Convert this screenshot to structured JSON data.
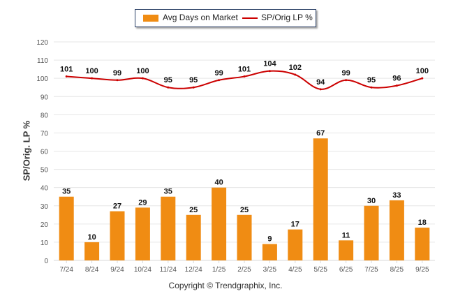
{
  "chart_data": {
    "type": "bar",
    "title": "",
    "xlabel": "",
    "ylabel": "SP/Orig. LP %",
    "ylim": [
      0,
      120
    ],
    "yticks": [
      0,
      10,
      20,
      30,
      40,
      50,
      60,
      70,
      80,
      90,
      100,
      110,
      120
    ],
    "grid": true,
    "legend_position": "top-center",
    "categories": [
      "7/24",
      "8/24",
      "9/24",
      "10/24",
      "11/24",
      "12/24",
      "1/25",
      "2/25",
      "3/25",
      "4/25",
      "5/25",
      "6/25",
      "7/25",
      "8/25",
      "9/25"
    ],
    "series": [
      {
        "name": "Avg Days on Market",
        "type": "bar",
        "color": "#f08c13",
        "values": [
          35,
          10,
          27,
          29,
          35,
          25,
          40,
          25,
          9,
          17,
          67,
          11,
          30,
          33,
          18
        ]
      },
      {
        "name": "SP/Orig LP %",
        "type": "line",
        "color": "#cc0000",
        "values": [
          101,
          100,
          99,
          100,
          95,
          95,
          99,
          101,
          104,
          102,
          94,
          99,
          95,
          96,
          100
        ]
      }
    ]
  },
  "footer": {
    "copyright": "Copyright © Trendgraphix, Inc."
  }
}
